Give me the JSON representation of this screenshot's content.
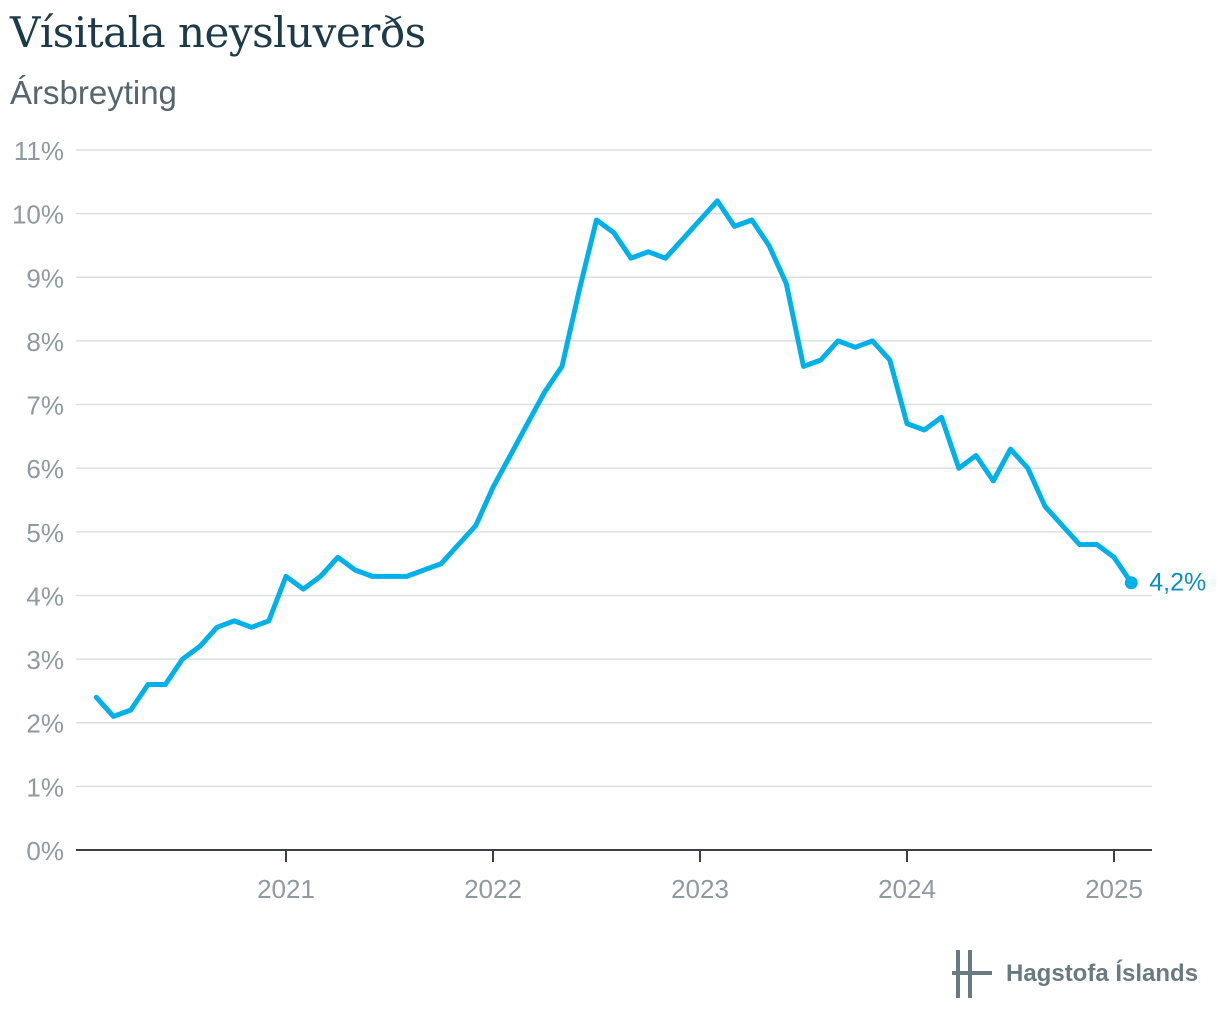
{
  "chart_data": {
    "type": "line",
    "title": "Vísitala neysluverðs",
    "subtitle": "Ársbreyting",
    "xlabel": "",
    "ylabel": "",
    "ylim": [
      0,
      11
    ],
    "y_ticks": [
      "0%",
      "1%",
      "2%",
      "3%",
      "4%",
      "5%",
      "6%",
      "7%",
      "8%",
      "9%",
      "10%",
      "11%"
    ],
    "x_ticks": [
      "2021",
      "2022",
      "2023",
      "2024",
      "2025"
    ],
    "grid": true,
    "color": "#00b0e8",
    "end_label": "4,2%",
    "series": [
      {
        "x": [
          "2020-02",
          "2020-03",
          "2020-04",
          "2020-05",
          "2020-06",
          "2020-07",
          "2020-08",
          "2020-09",
          "2020-10",
          "2020-11",
          "2020-12",
          "2021-01",
          "2021-02",
          "2021-03",
          "2021-04",
          "2021-05",
          "2021-06",
          "2021-07",
          "2021-08",
          "2021-09",
          "2021-10",
          "2021-11",
          "2021-12",
          "2022-01",
          "2022-02",
          "2022-03",
          "2022-04",
          "2022-05",
          "2022-06",
          "2022-07",
          "2022-08",
          "2022-09",
          "2022-10",
          "2022-11",
          "2022-12",
          "2023-01",
          "2023-02",
          "2023-03",
          "2023-04",
          "2023-05",
          "2023-06",
          "2023-07",
          "2023-08",
          "2023-09",
          "2023-10",
          "2023-11",
          "2023-12",
          "2024-01",
          "2024-02",
          "2024-03",
          "2024-04",
          "2024-05",
          "2024-06",
          "2024-07",
          "2024-08",
          "2024-09",
          "2024-10",
          "2024-11",
          "2024-12",
          "2025-01",
          "2025-02"
        ],
        "values": [
          2.4,
          2.1,
          2.2,
          2.6,
          2.6,
          3.0,
          3.2,
          3.5,
          3.6,
          3.5,
          3.6,
          4.3,
          4.1,
          4.3,
          4.6,
          4.4,
          4.3,
          4.3,
          4.3,
          4.4,
          4.5,
          4.8,
          5.1,
          5.7,
          6.2,
          6.7,
          7.2,
          7.6,
          8.8,
          9.9,
          9.7,
          9.3,
          9.4,
          9.3,
          9.6,
          9.9,
          10.2,
          9.8,
          9.9,
          9.5,
          8.9,
          7.6,
          7.7,
          8.0,
          7.9,
          8.0,
          7.7,
          6.7,
          6.6,
          6.8,
          6.0,
          6.2,
          5.8,
          6.3,
          6.0,
          5.4,
          5.1,
          4.8,
          4.8,
          4.6,
          4.2
        ]
      }
    ]
  },
  "brand": {
    "name": "Hagstofa Íslands",
    "logo_icon": "hagstofa-logo-icon"
  }
}
